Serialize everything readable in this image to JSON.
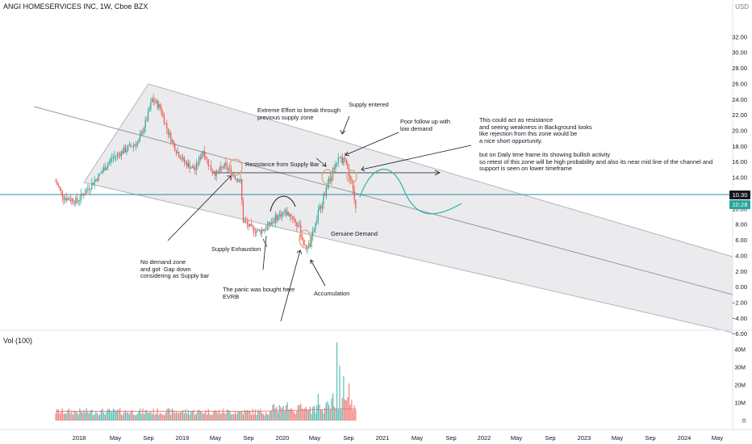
{
  "header": {
    "title": "ANGI HOMESERVICES INC, 1W, Cboe BZX",
    "currency": "USD"
  },
  "colors": {
    "up": "#26a69a",
    "down": "#ef5350",
    "price_line": "#2a8b9a",
    "channel_fill": "#e9e9ec",
    "channel_line": "#b2b5be",
    "projection": "#2bb3a8",
    "price_tag": "#131722",
    "last_tag": "#26a69a",
    "annotation": "#131722",
    "zone_ring": "#e0a46d"
  },
  "price_tags": {
    "current": "10.30",
    "last": "10.28"
  },
  "chart_data": {
    "type": "candlestick",
    "title": "ANGI HOMESERVICES INC, 1W, Cboe BZX",
    "interval": "1W",
    "y_axis": {
      "label": "USD",
      "range": [
        -6.8,
        34.5
      ],
      "ticks": [
        "−6.00",
        "−4.00",
        "−2.00",
        "0.00",
        "2.00",
        "4.00",
        "6.00",
        "8.00",
        "10.00",
        "12.00",
        "14.00",
        "16.00",
        "18.00",
        "20.00",
        "22.00",
        "24.00",
        "26.00",
        "28.00",
        "30.00",
        "32.00"
      ]
    },
    "x_axis": {
      "ticks": [
        "2018",
        "May",
        "Sep",
        "2019",
        "May",
        "Sep",
        "2020",
        "May",
        "Sep",
        "2021",
        "May",
        "Sep",
        "2022",
        "May",
        "Sep",
        "2023",
        "May",
        "Sep",
        "2024",
        "May"
      ]
    },
    "price_path": [
      [
        0,
        13.5
      ],
      [
        6,
        11.5
      ],
      [
        16,
        11.0
      ],
      [
        24,
        12.6
      ],
      [
        32,
        14.2
      ],
      [
        42,
        16.5
      ],
      [
        54,
        17.8
      ],
      [
        62,
        18.6
      ],
      [
        68,
        21.5
      ],
      [
        72,
        24.0
      ],
      [
        78,
        23.0
      ],
      [
        84,
        19.8
      ],
      [
        90,
        17.5
      ],
      [
        96,
        16.0
      ],
      [
        104,
        15.0
      ],
      [
        110,
        17.5
      ],
      [
        116,
        15.0
      ],
      [
        120,
        14.5
      ],
      [
        126,
        15.5
      ],
      [
        132,
        14.5
      ],
      [
        138,
        13.5
      ],
      [
        140,
        8.5
      ],
      [
        146,
        7.5
      ],
      [
        152,
        7.1
      ],
      [
        158,
        7.7
      ],
      [
        164,
        8.8
      ],
      [
        170,
        9.6
      ],
      [
        176,
        9.2
      ],
      [
        182,
        7.5
      ],
      [
        186,
        5.0
      ],
      [
        190,
        5.4
      ],
      [
        196,
        9.5
      ],
      [
        202,
        12.5
      ],
      [
        208,
        15.5
      ],
      [
        212,
        16.5
      ],
      [
        216,
        16.0
      ],
      [
        220,
        14.0
      ],
      [
        222,
        12.5
      ],
      [
        224,
        10.28
      ]
    ],
    "volume_axis": {
      "label": "Vol (100)",
      "ticks": [
        "0",
        "10M",
        "20M",
        "30M",
        "40M"
      ]
    },
    "volume_peaks": [
      {
        "week": 196,
        "value": 15
      },
      {
        "week": 210,
        "value": 44
      },
      {
        "week": 212,
        "value": 31
      },
      {
        "week": 215,
        "value": 25
      },
      {
        "week": 219,
        "value": 21
      }
    ],
    "annotations": [
      {
        "id": "resistance",
        "text": "Resistance from Supply Bar"
      },
      {
        "id": "extreme",
        "text": "Extreme Effort to break through\nprevious supply zone"
      },
      {
        "id": "supply-entered",
        "text": "Supply entered"
      },
      {
        "id": "poor-follow",
        "text": "Poor follow up with\nlow demand"
      },
      {
        "id": "thesis",
        "text": "This could act as resistance\nand seeing weakness in Background looks\nlike rejection from this zone would be\na nice short opportunity.\n\nbut on Daily time frame its showing bullish activity\nso retest of this zone will be high probability and also its near mid line of the channel and\nsupport is seen on lower timeframe"
      },
      {
        "id": "genuine-demand",
        "text": "Genuine Demand"
      },
      {
        "id": "supply-exhaustion",
        "text": "Supply Exhaustion"
      },
      {
        "id": "no-demand",
        "text": "No demand zone\nand got  Gap down\nconsidering as Supply bar"
      },
      {
        "id": "panic",
        "text": "The panic was bought here\nEVRB"
      },
      {
        "id": "accumulation",
        "text": "Accumulation"
      }
    ]
  }
}
